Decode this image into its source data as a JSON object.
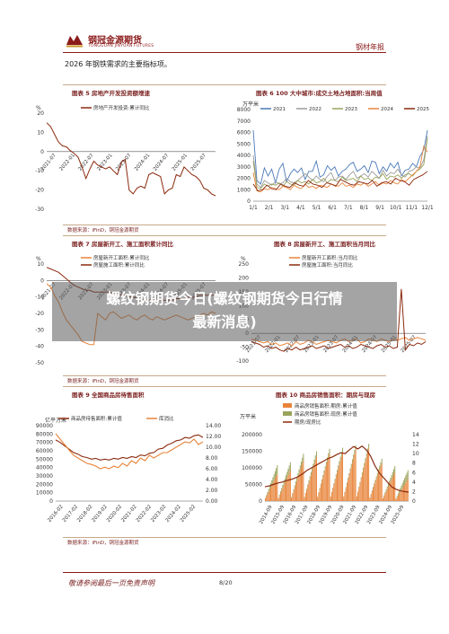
{
  "header": {
    "brand_cn": "钢冠金源期货",
    "brand_en": "TONGGUAN JINYUAN FUTURES",
    "report_type": "钢材年报"
  },
  "intro": "2026 年钢铁需求的主要指标项。",
  "overlay": {
    "line1": "螺纹钢期货今日(螺纹钢期货今日行情",
    "line2": "最新消息)"
  },
  "source_text": "数据来源：iFinD，铜冠金源期货",
  "footer": {
    "note": "敬请参阅最后一页免责声明",
    "page": "8/20"
  },
  "colors": {
    "orange": "#e8843a",
    "dark_red": "#8b2a0e",
    "blue": "#4a78b8",
    "gray": "#9a9a9a",
    "olive": "#9aa35a",
    "red": "#c0201b",
    "accent": "#8b1a1a"
  },
  "chart_data": [
    {
      "id": "fig5",
      "type": "line",
      "title": "图表 5 房地产开发投资额增速",
      "unit": "%",
      "ylim": [
        -30,
        20
      ],
      "yticks": [
        "20",
        "10",
        "0",
        "-10",
        "-20",
        "-30"
      ],
      "xticks": [
        "2021-07",
        "2022-01",
        "2022-07",
        "2023-01",
        "2023-07",
        "2024-01",
        "2024-07",
        "2025-01",
        "2025-07"
      ],
      "series": [
        {
          "name": "房地产开发投资:累计同比",
          "color": "#8b2a0e",
          "y": [
            15,
            13,
            9,
            5,
            3,
            2.5,
            0.5,
            -1,
            -3,
            -8,
            -14,
            -9,
            -5,
            -7,
            -8,
            -9,
            -8,
            -10,
            -12,
            -5.5,
            -4,
            -20,
            -22,
            -19,
            -18,
            -19,
            -12,
            -11,
            -12,
            -13,
            -22,
            -20,
            -19,
            -12,
            -13,
            -8,
            -10,
            -12,
            -13,
            -15,
            -19,
            -20,
            -22,
            -23
          ]
        }
      ]
    },
    {
      "id": "fig6",
      "type": "line",
      "title": "图表 6 100 大中城市:成交土地占地面积:当周值",
      "unit": "万平米",
      "ylim": [
        0,
        8000
      ],
      "yticks": [
        "8000",
        "7000",
        "6000",
        "5000",
        "4000",
        "3000",
        "2000",
        "1000",
        "0"
      ],
      "xticks": [
        "1/1",
        "2/1",
        "3/1",
        "4/1",
        "5/1",
        "6/1",
        "7/1",
        "8/1",
        "9/1",
        "10/1",
        "11/1",
        "12/1"
      ],
      "series": [
        {
          "name": "2021",
          "color": "#4a78b8",
          "y": [
            6200,
            1800,
            1500,
            2900,
            2200,
            2800,
            1600,
            2800,
            3300,
            1700,
            2400,
            2800,
            2500,
            2900,
            1900,
            2600,
            2600,
            3500,
            2100,
            2300,
            3100,
            2700,
            3000,
            2200,
            2600,
            2800,
            3200,
            3400,
            2600,
            2800,
            3100,
            2500,
            3500,
            3400,
            2400,
            3000,
            2600,
            3300,
            2900,
            3400,
            2200,
            2700,
            2800,
            3300,
            3000,
            3900,
            4500,
            6200
          ]
        },
        {
          "name": "2022",
          "color": "#9a9a9a",
          "y": [
            4000,
            1500,
            1200,
            1800,
            1600,
            1400,
            1700,
            1500,
            1600,
            2000,
            1700,
            1600,
            1800,
            2100,
            2400,
            2100,
            1800,
            2200,
            1900,
            1700,
            2200,
            2500,
            1800,
            2100,
            2200,
            1900,
            2300,
            2600,
            2000,
            2200,
            2400,
            2100,
            2600,
            2300,
            2000,
            2700,
            2200,
            2500,
            2400,
            2800,
            2300,
            2100,
            2600,
            2700,
            3000,
            2900,
            3600,
            5700
          ]
        },
        {
          "name": "2023",
          "color": "#9aa35a",
          "y": [
            3500,
            1200,
            1100,
            1500,
            1300,
            1500,
            1400,
            1600,
            1300,
            1700,
            1500,
            1400,
            1800,
            1600,
            1700,
            1500,
            1900,
            1600,
            1700,
            2000,
            1600,
            1900,
            1800,
            1700,
            2100,
            1800,
            1900,
            2000,
            1700,
            2200,
            1900,
            2000,
            1800,
            2100,
            2000,
            2400,
            1900,
            2200,
            2100,
            2300,
            2000,
            2300,
            2400,
            2200,
            2600,
            2800,
            3200,
            5500
          ]
        },
        {
          "name": "2024",
          "color": "#e8843a",
          "y": [
            2500,
            900,
            800,
            1100,
            1000,
            1200,
            1100,
            1000,
            1300,
            1200,
            1000,
            1400,
            1200,
            1100,
            1500,
            1200,
            1300,
            1100,
            1400,
            1300,
            1200,
            1500,
            1400,
            1300,
            1600,
            1300,
            1400,
            1200,
            1500,
            1400,
            1600,
            1300,
            1500,
            1700,
            1400,
            1600,
            1500,
            1800,
            1600,
            1500,
            1900,
            1700,
            2000,
            2300,
            2600,
            3000,
            4800,
            4300
          ]
        },
        {
          "name": "2025",
          "color": "#8b2a0e",
          "y": [
            1500,
            900,
            1000,
            1400,
            1100,
            1000,
            1500,
            1300,
            1200,
            1600,
            1400,
            1300,
            1800,
            1500,
            1400,
            1200,
            1600,
            1500,
            1300,
            1900,
            1700,
            1500,
            1400,
            1700,
            1600,
            1500,
            1800,
            1300,
            1600,
            1700,
            1500,
            2000,
            1800,
            1700,
            1400,
            1900,
            2100,
            2300,
            2600
          ]
        }
      ]
    },
    {
      "id": "fig7",
      "type": "line",
      "title": "图表 7 房屋新开工、施工面积累计同比",
      "unit": "%",
      "ylim": [
        -50,
        10
      ],
      "yticks": [
        "10",
        "0",
        "-10",
        "-20",
        "-30",
        "-40",
        "-50"
      ],
      "xticks": [
        "2021-07",
        "2022-01",
        "2022-07",
        "2023-01",
        "2023-07",
        "2024-01",
        "2024-07",
        "2025-01",
        "2025-07"
      ],
      "series": [
        {
          "name": "房屋新开工面积:累计同比",
          "color": "#e8843a",
          "y": [
            -2,
            -4,
            -9,
            -13,
            -19,
            -24,
            -27,
            -30,
            -33,
            -37,
            -38,
            -39,
            -39,
            -20,
            -22,
            -24,
            -20,
            -19,
            -21,
            -23,
            -22,
            -21,
            -23,
            -24,
            -22,
            -21,
            -23,
            -24,
            -22,
            -23,
            -24,
            -23,
            -22,
            -21,
            -22,
            -23,
            -24,
            -23,
            -22,
            -21,
            -20,
            -21,
            -19,
            -20
          ]
        },
        {
          "name": "房屋施工面积:累计同比",
          "color": "#8b2a0e",
          "y": [
            8,
            7,
            6,
            5,
            3,
            1,
            -1,
            -3,
            -4,
            -5,
            -6,
            -6,
            -7,
            -7,
            -7,
            -7,
            -7,
            -8,
            -8,
            -9,
            -9,
            -10,
            -10,
            -11,
            -11,
            -12,
            -12,
            -12,
            -12,
            -12,
            -12,
            -12,
            -12,
            -11,
            -11,
            -11,
            -10,
            -10,
            -10,
            -9,
            -9,
            -9,
            -9,
            -9
          ]
        }
      ]
    },
    {
      "id": "fig8",
      "type": "line",
      "title": "图表 8 房屋新开工、施工面积当月同比",
      "unit": "%",
      "ylim": [
        -100,
        250
      ],
      "yticks": [
        "250",
        "200",
        "150",
        "100",
        "50",
        "0",
        "-50",
        "-100"
      ],
      "xticks": [
        "2021-07",
        "2022-01",
        "2022-07",
        "2023-01",
        "2023-07",
        "2024-01",
        "2024-07",
        "2025-01",
        "2025-07"
      ],
      "series": [
        {
          "name": "房屋新开工面积:当月同比",
          "color": "#e8843a",
          "y": [
            -20,
            -25,
            -30,
            -35,
            -30,
            -40,
            -35,
            -45,
            -40,
            -35,
            -45,
            -30,
            -40,
            -35,
            -25,
            -30,
            -40,
            -35,
            -30,
            -25,
            -30,
            -35,
            -25,
            -20,
            -30,
            -25,
            -20,
            -35,
            -30,
            -20,
            -25,
            -30,
            -20,
            -25,
            -30,
            -20,
            -25,
            -20,
            -15,
            -25,
            -20,
            -15,
            -20,
            -25
          ]
        },
        {
          "name": "房屋施工面积:当月同比",
          "color": "#8b2a0e",
          "y": [
            -30,
            -35,
            -40,
            -50,
            -45,
            -55,
            -50,
            -60,
            -65,
            -55,
            -60,
            -50,
            -60,
            -55,
            -50,
            -45,
            -55,
            -50,
            -45,
            -55,
            -50,
            -45,
            -40,
            -50,
            -45,
            -55,
            -50,
            -40,
            -45,
            -50,
            -55,
            -45,
            -40,
            -50,
            -45,
            -55,
            -50,
            160,
            -60,
            -40,
            -45,
            -35,
            -40,
            -30
          ]
        }
      ]
    },
    {
      "id": "fig9",
      "type": "line",
      "title": "图表 9 全国商品房待售面积",
      "unit_left": "亿平方米",
      "ylim_left": [
        0,
        90000
      ],
      "yticks_left": [
        "90000",
        "80000",
        "70000",
        "60000",
        "50000",
        "40000",
        "30000",
        "20000",
        "10000",
        "0"
      ],
      "ylim_right": [
        0,
        14
      ],
      "yticks_right": [
        "14.00",
        "12.00",
        "10.00",
        "8.00",
        "6.00",
        "4.00",
        "2.00",
        "0.00"
      ],
      "xticks": [
        "2016-02",
        "2017-02",
        "2018-02",
        "2019-02",
        "2020-02",
        "2021-02",
        "2022-02",
        "2023-02",
        "2024-02",
        "2025-02"
      ],
      "series": [
        {
          "name": "商品房待售面积:累计值",
          "color": "#8b2a0e",
          "axis": "left",
          "y": [
            73000,
            70000,
            66000,
            62000,
            58000,
            56000,
            53000,
            52000,
            50000,
            51000,
            49000,
            50000,
            49000,
            51000,
            50000,
            52000,
            51000,
            53000,
            52000,
            55000,
            54000,
            57000,
            58000,
            62000,
            63000,
            67000,
            69000,
            72000,
            73000,
            76000,
            75000,
            78000,
            79000,
            76000
          ]
        },
        {
          "name": "库消比",
          "color": "#e8843a",
          "axis": "right",
          "y": [
            12.5,
            11.5,
            10.5,
            9.5,
            8.5,
            8.0,
            7.5,
            7.0,
            6.8,
            6.5,
            6.0,
            6.3,
            6.0,
            6.5,
            6.2,
            7.0,
            6.5,
            7.5,
            7.0,
            8.0,
            7.5,
            8.5,
            8.0,
            8.5,
            9.0,
            9.0,
            9.5,
            10.0,
            10.5,
            11.0,
            10.8,
            11.5,
            10.5,
            11.0
          ]
        }
      ]
    },
    {
      "id": "fig10",
      "type": "bar",
      "title": "图表 10 商品房销售面积：期房与现房",
      "unit_left": "万平米",
      "ylim_left": [
        0,
        200000
      ],
      "yticks_left": [
        "200000",
        "150000",
        "100000",
        "50000",
        "0"
      ],
      "ylim_right": [
        0,
        14
      ],
      "yticks_right": [
        "14",
        "12",
        "10",
        "8",
        "6",
        "4",
        "2",
        "0"
      ],
      "xticks": [
        "2014-09",
        "2015-09",
        "2016-09",
        "2017-09",
        "2018-09",
        "2019-09",
        "2020-09",
        "2021-09",
        "2022-09",
        "2023-09",
        "2024-09",
        "2025-09"
      ],
      "series": [
        {
          "name": "商品房销售面积:期房:累计值",
          "color": "#e8843a",
          "type": "bar"
        },
        {
          "name": "商品房销售面积:现房:累计值",
          "color": "#9aa35a",
          "type": "bar"
        },
        {
          "name": "期房/现房比",
          "color": "#8b2a0e",
          "type": "line",
          "axis": "right",
          "y": [
            3.0,
            3.2,
            3.5,
            3.8,
            4.0,
            4.3,
            4.5,
            4.8,
            5.2,
            5.8,
            6.5,
            7.0,
            7.5,
            8.0,
            8.5,
            9.0,
            9.3,
            9.8,
            10.2,
            10.0,
            10.8,
            11.5,
            11.0,
            11.6,
            10.8,
            9.5,
            7.5,
            6.0,
            5.0,
            4.0,
            3.0,
            2.5,
            2.2,
            2.0,
            1.9
          ]
        }
      ]
    }
  ]
}
